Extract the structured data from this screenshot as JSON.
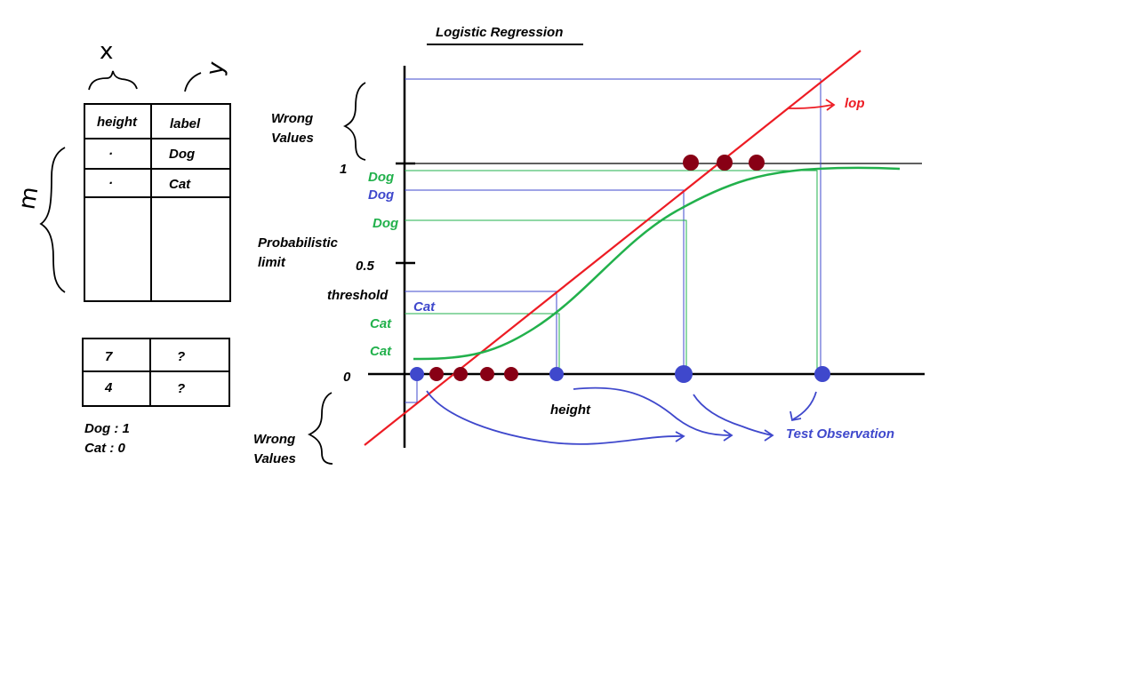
{
  "title": "Logistic Regression",
  "colors": {
    "red": "#ed1c24",
    "green": "#22b14c",
    "blue": "#3f48cc",
    "dark_red": "#880015",
    "black": "#000000"
  },
  "training_table": {
    "x_brace_label": "x",
    "y_brace_label": "y",
    "m_brace_label": "m",
    "headers": [
      "height",
      "label"
    ],
    "rows": [
      {
        "height": "·",
        "label": "Dog"
      },
      {
        "height": "·",
        "label": "Cat"
      }
    ]
  },
  "test_table": {
    "rows": [
      {
        "height": "7",
        "label": "?"
      },
      {
        "height": "4",
        "label": "?"
      }
    ]
  },
  "encoding": {
    "dog": "Dog : 1",
    "cat": "Cat : 0"
  },
  "graph": {
    "y_ticks": {
      "one": "1",
      "half": "0.5",
      "zero": "0"
    },
    "wrong_values_top": [
      "Wrong",
      "Values"
    ],
    "wrong_values_bottom": [
      "Wrong",
      "Values"
    ],
    "probabilistic_limit": [
      "Probabilistic",
      "limit"
    ],
    "threshold": "threshold",
    "x_axis_label": "height",
    "line_label": "lop",
    "test_observation": "Test Observation",
    "green_labels": [
      "Dog",
      "Dog",
      "Cat",
      "Cat"
    ],
    "blue_labels": [
      "Dog",
      "Cat"
    ]
  },
  "icons": {
    "red_arrow": "curved-arrow-icon",
    "blue_arrows": "curved-arrow-icon"
  }
}
